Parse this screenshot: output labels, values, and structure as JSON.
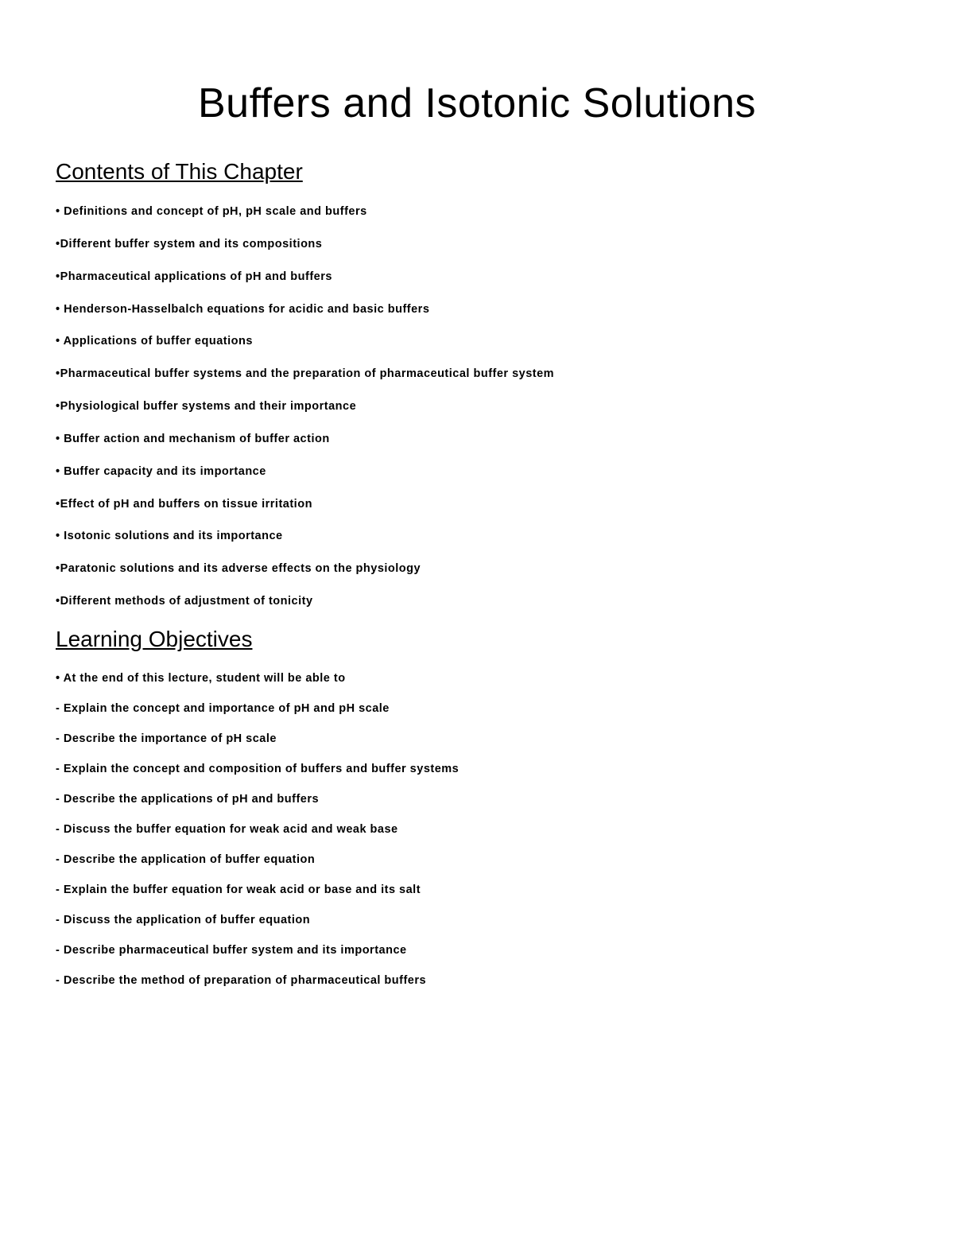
{
  "title": "Buffers and Isotonic Solutions",
  "sections": {
    "contents": {
      "heading": "Contents of This Chapter",
      "items": [
        "• Definitions and concept of pH, pH scale and buffers",
        "•Different buffer system and its compositions",
        "•Pharmaceutical applications of pH and buffers",
        "• Henderson-Hasselbalch equations for acidic and basic buffers",
        "• Applications of buffer equations",
        "•Pharmaceutical buffer systems and the preparation of pharmaceutical buffer system",
        "•Physiological buffer systems and their importance",
        "• Buffer action and mechanism of buffer action",
        "• Buffer capacity and its importance",
        "•Effect of pH and buffers on tissue irritation",
        "• Isotonic solutions and its importance",
        "•Paratonic solutions and its adverse effects on the physiology",
        "•Different methods of adjustment of tonicity"
      ]
    },
    "objectives": {
      "heading": "Learning Objectives",
      "intro": "• At the end of this lecture, student will be able to",
      "items": [
        "- Explain the concept and importance of pH and pH scale",
        "- Describe the importance of pH scale",
        "- Explain the concept and composition of buffers and buffer systems",
        "- Describe the applications of pH and buffers",
        "- Discuss the buffer equation for weak acid and weak base",
        "- Describe the application of buffer equation",
        "- Explain the buffer equation for weak acid or base and its salt",
        "- Discuss the application of buffer equation",
        "- Describe pharmaceutical buffer system and its importance",
        "- Describe the method of preparation of pharmaceutical buffers"
      ]
    }
  }
}
